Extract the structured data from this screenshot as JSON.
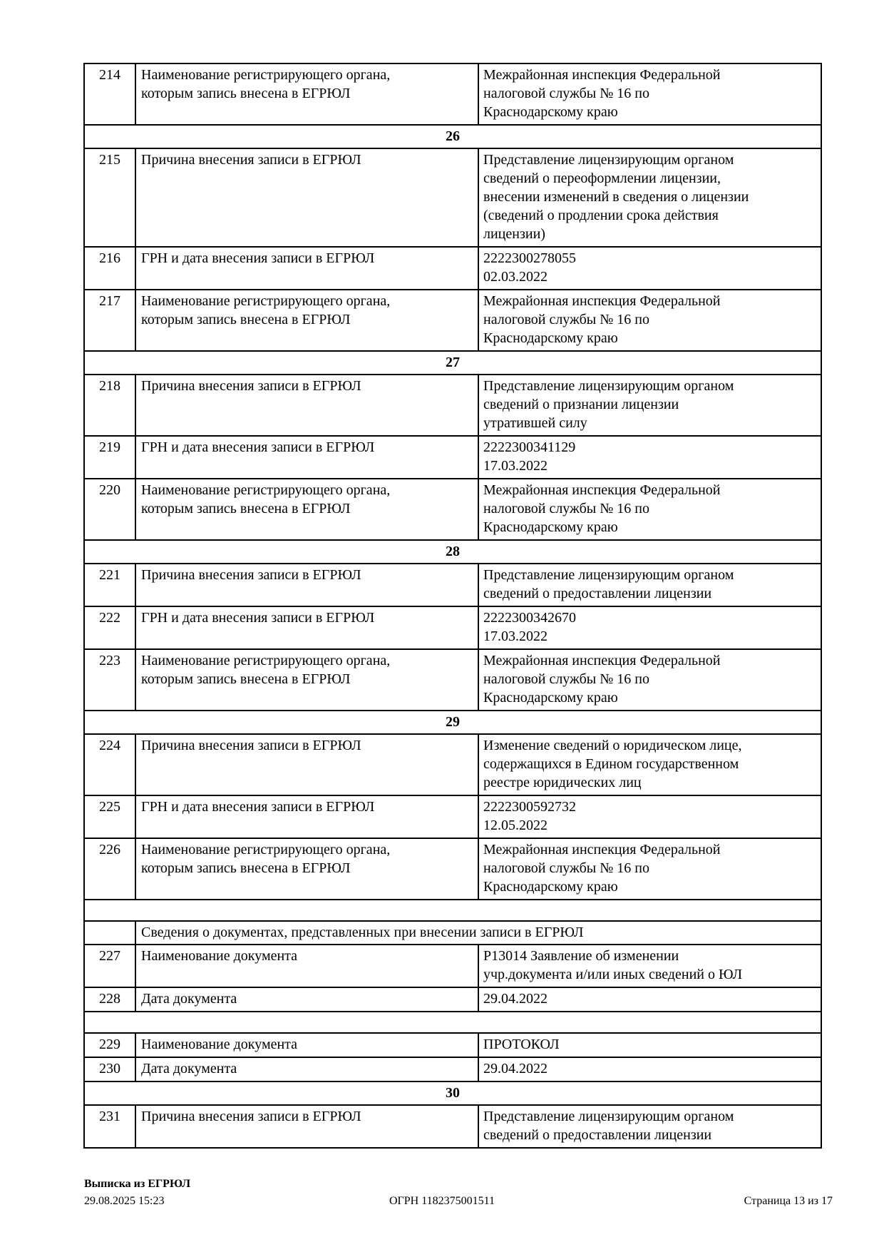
{
  "colors": {
    "text": "#000000",
    "border": "#000000",
    "background": "#ffffff"
  },
  "table": {
    "rows": [
      {
        "type": "entry",
        "num": "214",
        "label": "Наименование регистрирующего органа,\nкоторым запись внесена в ЕГРЮЛ",
        "value": "Межрайонная инспекция Федеральной\nналоговой службы № 16 по\nКраснодарскому краю"
      },
      {
        "type": "section",
        "label": "26"
      },
      {
        "type": "entry",
        "num": "215",
        "label": "Причина внесения записи в ЕГРЮЛ",
        "value": "Представление лицензирующим органом\nсведений о переоформлении лицензии,\nвнесении изменений в сведения о лицензии\n(сведений о продлении срока действия\nлицензии)"
      },
      {
        "type": "entry",
        "num": "216",
        "label": "ГРН и дата внесения записи в ЕГРЮЛ",
        "value": "2222300278055\n02.03.2022"
      },
      {
        "type": "entry",
        "num": "217",
        "label": "Наименование регистрирующего органа,\nкоторым запись внесена в ЕГРЮЛ",
        "value": "Межрайонная инспекция Федеральной\nналоговой службы № 16 по\nКраснодарскому краю"
      },
      {
        "type": "section",
        "label": "27"
      },
      {
        "type": "entry",
        "num": "218",
        "label": "Причина внесения записи в ЕГРЮЛ",
        "value": "Представление лицензирующим органом\nсведений о признании лицензии\nутратившей силу"
      },
      {
        "type": "entry",
        "num": "219",
        "label": "ГРН и дата внесения записи в ЕГРЮЛ",
        "value": "2222300341129\n17.03.2022"
      },
      {
        "type": "entry",
        "num": "220",
        "label": "Наименование регистрирующего органа,\nкоторым запись внесена в ЕГРЮЛ",
        "value": "Межрайонная инспекция Федеральной\nналоговой службы № 16 по\nКраснодарскому краю"
      },
      {
        "type": "section",
        "label": "28"
      },
      {
        "type": "entry",
        "num": "221",
        "label": "Причина внесения записи в ЕГРЮЛ",
        "value": "Представление лицензирующим органом\nсведений о предоставлении лицензии"
      },
      {
        "type": "entry",
        "num": "222",
        "label": "ГРН и дата внесения записи в ЕГРЮЛ",
        "value": "2222300342670\n17.03.2022"
      },
      {
        "type": "entry",
        "num": "223",
        "label": "Наименование регистрирующего органа,\nкоторым запись внесена в ЕГРЮЛ",
        "value": "Межрайонная инспекция Федеральной\nналоговой службы № 16 по\nКраснодарскому краю"
      },
      {
        "type": "section",
        "label": "29"
      },
      {
        "type": "entry",
        "num": "224",
        "label": "Причина внесения записи в ЕГРЮЛ",
        "value": "Изменение сведений о юридическом лице,\nсодержащихся в Едином государственном\nреестре юридических лиц"
      },
      {
        "type": "entry",
        "num": "225",
        "label": "ГРН и дата внесения записи в ЕГРЮЛ",
        "value": "2222300592732\n12.05.2022"
      },
      {
        "type": "entry",
        "num": "226",
        "label": "Наименование регистрирующего органа,\nкоторым запись внесена в ЕГРЮЛ",
        "value": "Межрайонная инспекция Федеральной\nналоговой службы № 16 по\nКраснодарскому краю"
      },
      {
        "type": "spacer"
      },
      {
        "type": "subheader",
        "label": "Сведения о документах, представленных при внесении записи в ЕГРЮЛ"
      },
      {
        "type": "entry",
        "num": "227",
        "label": "Наименование документа",
        "value": "Р13014 Заявление об изменении\nучр.документа и/или иных сведений о ЮЛ"
      },
      {
        "type": "entry",
        "num": "228",
        "label": "Дата документа",
        "value": "29.04.2022"
      },
      {
        "type": "spacer"
      },
      {
        "type": "entry",
        "num": "229",
        "label": "Наименование документа",
        "value": "ПРОТОКОЛ"
      },
      {
        "type": "entry",
        "num": "230",
        "label": "Дата документа",
        "value": "29.04.2022"
      },
      {
        "type": "section",
        "label": "30"
      },
      {
        "type": "entry",
        "num": "231",
        "label": "Причина внесения записи в ЕГРЮЛ",
        "value": "Представление лицензирующим органом\nсведений о предоставлении лицензии"
      }
    ]
  },
  "footer": {
    "doc_title": "Выписка из ЕГРЮЛ",
    "timestamp": "29.08.2025 15:23",
    "ogrn": "ОГРН 1182375001511",
    "page_info": "Страница 13 из 17"
  }
}
